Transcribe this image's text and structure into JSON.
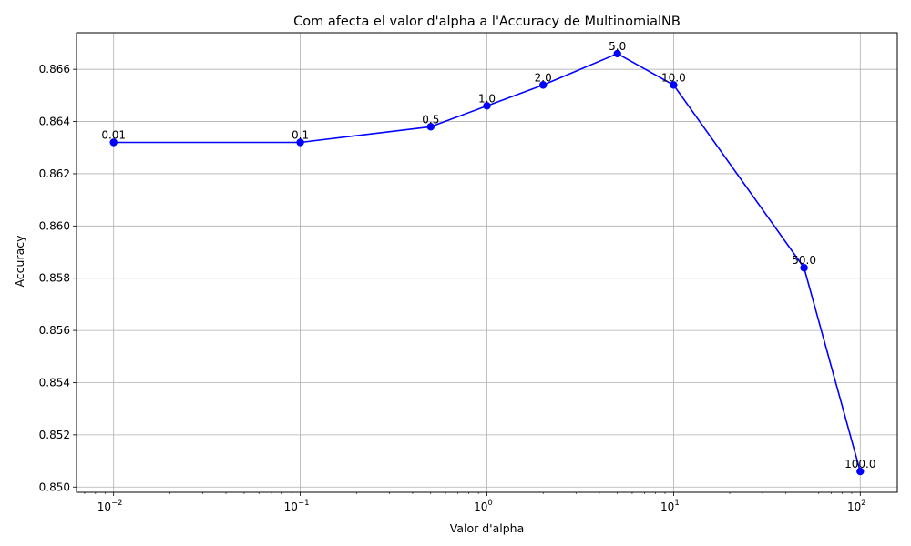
{
  "chart_data": {
    "type": "line",
    "title": "Com afecta el valor d'alpha a l'Accuracy de MultinomialNB",
    "xlabel": "Valor d'alpha",
    "ylabel": "Accuracy",
    "x_scale": "log",
    "xlim": [
      0.00633,
      158.0
    ],
    "ylim": [
      0.8498,
      0.8674
    ],
    "x_ticks": [
      {
        "value": 0.01,
        "base": "10",
        "exp": "−2"
      },
      {
        "value": 0.1,
        "base": "10",
        "exp": "−1"
      },
      {
        "value": 1,
        "base": "10",
        "exp": "0"
      },
      {
        "value": 10,
        "base": "10",
        "exp": "1"
      },
      {
        "value": 100,
        "base": "10",
        "exp": "2"
      }
    ],
    "y_ticks": [
      {
        "value": 0.85,
        "label": "0.850"
      },
      {
        "value": 0.852,
        "label": "0.852"
      },
      {
        "value": 0.854,
        "label": "0.854"
      },
      {
        "value": 0.856,
        "label": "0.856"
      },
      {
        "value": 0.858,
        "label": "0.858"
      },
      {
        "value": 0.86,
        "label": "0.860"
      },
      {
        "value": 0.862,
        "label": "0.862"
      },
      {
        "value": 0.864,
        "label": "0.864"
      },
      {
        "value": 0.866,
        "label": "0.866"
      }
    ],
    "grid": true,
    "series": [
      {
        "color": "#0000ff",
        "points": [
          {
            "x": 0.01,
            "y": 0.8632,
            "label": "0.01"
          },
          {
            "x": 0.1,
            "y": 0.8632,
            "label": "0.1"
          },
          {
            "x": 0.5,
            "y": 0.8638,
            "label": "0.5"
          },
          {
            "x": 1.0,
            "y": 0.8646,
            "label": "1.0"
          },
          {
            "x": 2.0,
            "y": 0.8654,
            "label": "2.0"
          },
          {
            "x": 5.0,
            "y": 0.8666,
            "label": "5.0"
          },
          {
            "x": 10.0,
            "y": 0.8654,
            "label": "10.0"
          },
          {
            "x": 50.0,
            "y": 0.8584,
            "label": "50.0"
          },
          {
            "x": 100.0,
            "y": 0.8506,
            "label": "100.0"
          }
        ]
      }
    ]
  }
}
